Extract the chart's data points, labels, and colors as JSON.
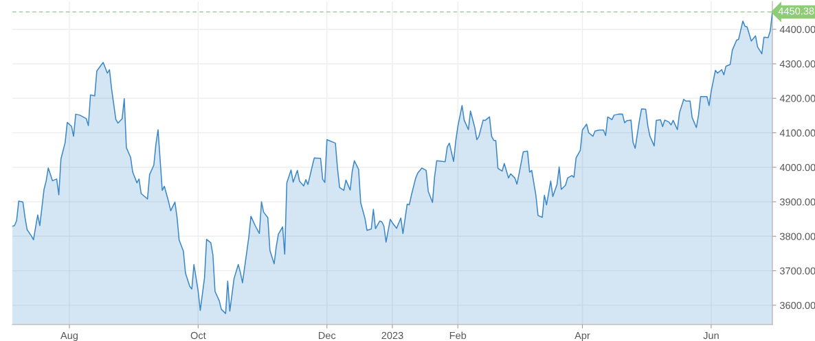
{
  "chart_data": {
    "type": "area",
    "x": [
      "2022-07-05",
      "2022-07-06",
      "2022-07-07",
      "2022-07-08",
      "2022-07-10",
      "2022-07-11",
      "2022-07-12",
      "2022-07-14",
      "2022-07-15",
      "2022-07-17",
      "2022-07-18",
      "2022-07-20",
      "2022-07-21",
      "2022-07-22",
      "2022-07-24",
      "2022-07-26",
      "2022-07-27",
      "2022-07-28",
      "2022-07-30",
      "2022-07-31",
      "2022-08-02",
      "2022-08-03",
      "2022-08-04",
      "2022-08-06",
      "2022-08-09",
      "2022-08-10",
      "2022-08-11",
      "2022-08-13",
      "2022-08-14",
      "2022-08-16",
      "2022-08-17",
      "2022-08-19",
      "2022-08-20",
      "2022-08-21",
      "2022-08-23",
      "2022-08-24",
      "2022-08-26",
      "2022-08-27",
      "2022-08-28",
      "2022-08-30",
      "2022-08-31",
      "2022-09-02",
      "2022-09-03",
      "2022-09-04",
      "2022-09-07",
      "2022-09-08",
      "2022-09-10",
      "2022-09-11",
      "2022-09-12",
      "2022-09-14",
      "2022-09-15",
      "2022-09-17",
      "2022-09-18",
      "2022-09-20",
      "2022-09-21",
      "2022-09-22",
      "2022-09-24",
      "2022-09-25",
      "2022-09-27",
      "2022-09-28",
      "2022-09-29",
      "2022-10-01",
      "2022-10-02",
      "2022-10-04",
      "2022-10-05",
      "2022-10-07",
      "2022-10-08",
      "2022-10-09",
      "2022-10-11",
      "2022-10-12",
      "2022-10-14",
      "2022-10-15",
      "2022-10-16",
      "2022-10-18",
      "2022-10-20",
      "2022-10-21",
      "2022-10-22",
      "2022-10-24",
      "2022-10-25",
      "2022-10-26",
      "2022-10-28",
      "2022-10-30",
      "2022-10-31",
      "2022-11-01",
      "2022-11-03",
      "2022-11-04",
      "2022-11-06",
      "2022-11-07",
      "2022-11-08",
      "2022-11-10",
      "2022-11-11",
      "2022-11-12",
      "2022-11-14",
      "2022-11-15",
      "2022-11-17",
      "2022-11-18",
      "2022-11-20",
      "2022-11-21",
      "2022-11-22",
      "2022-11-24",
      "2022-11-25",
      "2022-11-28",
      "2022-11-29",
      "2022-11-30",
      "2022-12-01",
      "2022-12-05",
      "2022-12-06",
      "2022-12-07",
      "2022-12-09",
      "2022-12-10",
      "2022-12-12",
      "2022-12-13",
      "2022-12-14",
      "2022-12-16",
      "2022-12-17",
      "2022-12-19",
      "2022-12-20",
      "2022-12-22",
      "2022-12-23",
      "2022-12-24",
      "2022-12-26",
      "2022-12-27",
      "2022-12-28",
      "2022-12-29",
      "2022-12-31",
      "2023-01-01",
      "2023-01-03",
      "2023-01-05",
      "2023-01-06",
      "2023-01-08",
      "2023-01-09",
      "2023-01-10",
      "2023-01-12",
      "2023-01-13",
      "2023-01-15",
      "2023-01-17",
      "2023-01-18",
      "2023-01-20",
      "2023-01-21",
      "2023-01-22",
      "2023-01-26",
      "2023-01-27",
      "2023-01-28",
      "2023-01-30",
      "2023-01-31",
      "2023-02-01",
      "2023-02-03",
      "2023-02-04",
      "2023-02-06",
      "2023-02-07",
      "2023-02-09",
      "2023-02-10",
      "2023-02-11",
      "2023-02-13",
      "2023-02-14",
      "2023-02-16",
      "2023-02-17",
      "2023-02-18",
      "2023-02-19",
      "2023-02-20",
      "2023-02-22",
      "2023-02-23",
      "2023-02-25",
      "2023-02-26",
      "2023-02-28",
      "2023-03-01",
      "2023-03-02",
      "2023-03-04",
      "2023-03-06",
      "2023-03-07",
      "2023-03-08",
      "2023-03-10",
      "2023-03-11",
      "2023-03-13",
      "2023-03-14",
      "2023-03-15",
      "2023-03-17",
      "2023-03-18",
      "2023-03-20",
      "2023-03-21",
      "2023-03-22",
      "2023-03-24",
      "2023-03-25",
      "2023-03-27",
      "2023-03-28",
      "2023-03-29",
      "2023-03-31",
      "2023-04-01",
      "2023-04-03",
      "2023-04-04",
      "2023-04-06",
      "2023-04-07",
      "2023-04-09",
      "2023-04-11",
      "2023-04-12",
      "2023-04-13",
      "2023-04-15",
      "2023-04-16",
      "2023-04-18",
      "2023-04-20",
      "2023-04-21",
      "2023-04-22",
      "2023-04-24",
      "2023-04-25",
      "2023-04-26",
      "2023-04-28",
      "2023-04-29",
      "2023-05-01",
      "2023-05-02",
      "2023-05-03",
      "2023-05-05",
      "2023-05-06",
      "2023-05-08",
      "2023-05-09",
      "2023-05-10",
      "2023-05-12",
      "2023-05-13",
      "2023-05-14",
      "2023-05-16",
      "2023-05-17",
      "2023-05-19",
      "2023-05-20",
      "2023-05-22",
      "2023-05-23",
      "2023-05-25",
      "2023-05-26",
      "2023-05-27",
      "2023-05-30",
      "2023-05-31",
      "2023-06-01",
      "2023-06-03",
      "2023-06-04",
      "2023-06-06",
      "2023-06-07",
      "2023-06-08",
      "2023-06-10",
      "2023-06-11",
      "2023-06-13",
      "2023-06-14",
      "2023-06-16",
      "2023-06-17",
      "2023-06-18",
      "2023-06-19",
      "2023-06-20",
      "2023-06-22",
      "2023-06-23",
      "2023-06-25",
      "2023-06-26",
      "2023-06-28",
      "2023-06-29",
      "2023-06-30"
    ],
    "series": [
      {
        "color": "#3a87c8",
        "values": [
          3829,
          3831,
          3845,
          3902,
          3899,
          3854,
          3819,
          3801,
          3790,
          3862,
          3831,
          3936,
          3960,
          3998,
          3961,
          3966,
          3920,
          4024,
          4072,
          4130,
          4119,
          4090,
          4154,
          4151,
          4141,
          4121,
          4210,
          4207,
          4279,
          4296,
          4304,
          4273,
          4283,
          4227,
          4139,
          4128,
          4141,
          4199,
          4057,
          4029,
          3986,
          3955,
          3966,
          3924,
          3908,
          3979,
          4006,
          4067,
          4109,
          3933,
          3945,
          3900,
          3874,
          3899,
          3855,
          3789,
          3757,
          3693,
          3655,
          3647,
          3718,
          3641,
          3585,
          3679,
          3791,
          3781,
          3745,
          3640,
          3613,
          3588,
          3576,
          3670,
          3583,
          3677,
          3718,
          3695,
          3665,
          3753,
          3798,
          3858,
          3831,
          3808,
          3900,
          3870,
          3854,
          3759,
          3720,
          3770,
          3806,
          3827,
          3748,
          3955,
          3992,
          3957,
          3991,
          3960,
          3946,
          3964,
          3950,
          4002,
          4027,
          4026,
          3965,
          3956,
          4080,
          4070,
          3997,
          3941,
          3933,
          3963,
          3934,
          3989,
          4019,
          3994,
          3897,
          3852,
          3817,
          3821,
          3878,
          3822,
          3844,
          3842,
          3829,
          3783,
          3849,
          3839,
          3823,
          3853,
          3808,
          3893,
          3891,
          3919,
          3968,
          3983,
          3998,
          3991,
          3930,
          3898,
          3973,
          4019,
          4016,
          4059,
          4070,
          4017,
          4076,
          4118,
          4179,
          4137,
          4109,
          4163,
          4116,
          4080,
          4090,
          4137,
          4136,
          4146,
          4090,
          4078,
          4077,
          3997,
          3989,
          4011,
          3969,
          3981,
          3969,
          3951,
          3981,
          4045,
          4047,
          3986,
          3991,
          3918,
          3860,
          3855,
          3919,
          3891,
          3960,
          3915,
          3951,
          4001,
          3936,
          3948,
          3969,
          3976,
          3971,
          4027,
          4049,
          4108,
          4125,
          4100,
          4090,
          4105,
          4108,
          4108,
          4092,
          4146,
          4138,
          4151,
          4154,
          4154,
          4129,
          4135,
          4137,
          4072,
          4055,
          4135,
          4169,
          4168,
          4120,
          4090,
          4062,
          4136,
          4138,
          4118,
          4137,
          4131,
          4123,
          4136,
          4109,
          4158,
          4197,
          4192,
          4192,
          4144,
          4115,
          4151,
          4205,
          4205,
          4179,
          4220,
          4281,
          4273,
          4283,
          4268,
          4293,
          4298,
          4339,
          4368,
          4371,
          4424,
          4409,
          4407,
          4387,
          4366,
          4381,
          4349,
          4329,
          4377,
          4376,
          4396,
          4450.38
        ]
      }
    ],
    "xlim": [
      "2022-07-05",
      "2023-06-30"
    ],
    "xticks": [
      {
        "value": "2022-08-01",
        "label": "Aug"
      },
      {
        "value": "2022-10-01",
        "label": "Oct"
      },
      {
        "value": "2022-12-01",
        "label": "Dec"
      },
      {
        "value": "2023-01-01",
        "label": "2023"
      },
      {
        "value": "2023-02-01",
        "label": "Feb"
      },
      {
        "value": "2023-04-01",
        "label": "Apr"
      },
      {
        "value": "2023-06-01",
        "label": "Jun"
      }
    ],
    "ylim": [
      3544,
      4481
    ],
    "yticks": [
      {
        "value": 3600,
        "label": "3600.00"
      },
      {
        "value": 3700,
        "label": "3700.00"
      },
      {
        "value": 3800,
        "label": "3800.00"
      },
      {
        "value": 3900,
        "label": "3900.00"
      },
      {
        "value": 4000,
        "label": "4000.00"
      },
      {
        "value": 4100,
        "label": "4100.00"
      },
      {
        "value": 4200,
        "label": "4200.00"
      },
      {
        "value": 4300,
        "label": "4300.00"
      },
      {
        "value": 4400,
        "label": "4400.00"
      }
    ],
    "ref_lines": [
      {
        "axis": "y",
        "value": 4450.38,
        "label": "4450.38",
        "color": "#8fcc77",
        "line_style": "dashed"
      }
    ],
    "grid": true
  }
}
